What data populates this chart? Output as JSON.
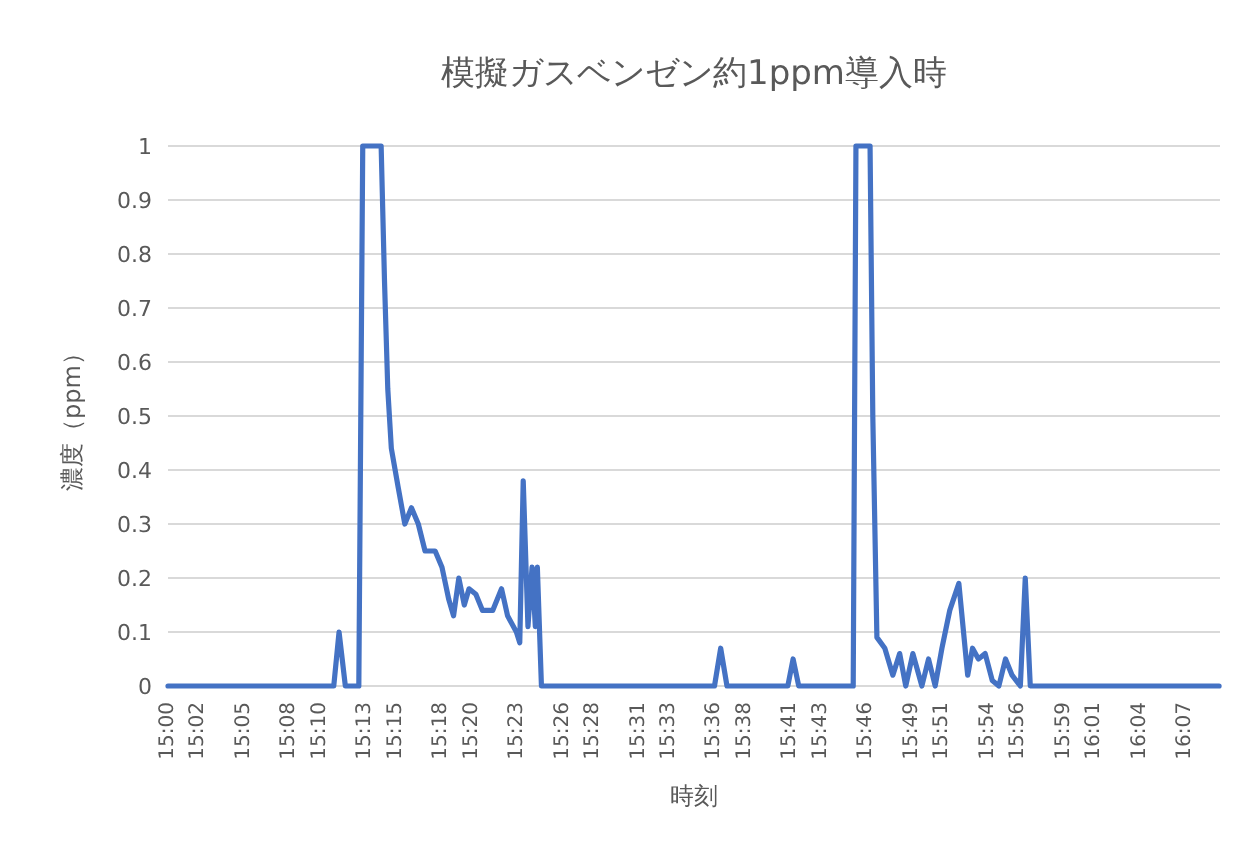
{
  "chart_data": {
    "type": "line",
    "title": "模擬ガスベンゼン約1ppm導入時",
    "xlabel": "時刻",
    "ylabel": "濃度（ppm）",
    "series": [
      {
        "color": "#4472c4",
        "x": [
          15.0,
          15.182,
          15.1878,
          15.1947,
          15.2095,
          15.2138,
          15.234,
          15.2377,
          15.2413,
          15.2452,
          15.2525,
          15.26,
          15.2673,
          15.2748,
          15.2822,
          15.2933,
          15.3008,
          15.3083,
          15.3135,
          15.3193,
          15.3253,
          15.3305,
          15.338,
          15.3453,
          15.3565,
          15.3662,
          15.3728,
          15.3825,
          15.3862,
          15.39,
          15.3952,
          15.3997,
          15.4033,
          15.4055,
          15.41,
          15.6,
          15.6068,
          15.6137,
          15.6805,
          15.6863,
          15.6925,
          15.7523,
          15.7553,
          15.7708,
          15.7738,
          15.7783,
          15.787,
          15.7958,
          15.8033,
          15.81,
          15.8178,
          15.8277,
          15.835,
          15.8423,
          15.8497,
          15.8583,
          15.8683,
          15.878,
          15.8833,
          15.8898,
          15.8972,
          15.905,
          15.9122,
          15.9195,
          15.9267,
          15.9358,
          15.9412,
          15.9467,
          16.154
        ],
        "values": [
          0,
          0,
          0.1,
          0,
          0,
          1,
          1,
          0.75,
          0.55,
          0.44,
          0.37,
          0.3,
          0.33,
          0.3,
          0.25,
          0.25,
          0.22,
          0.16,
          0.13,
          0.2,
          0.15,
          0.18,
          0.17,
          0.14,
          0.14,
          0.18,
          0.13,
          0.1,
          0.08,
          0.38,
          0.11,
          0.22,
          0.11,
          0.22,
          0,
          0,
          0.07,
          0,
          0,
          0.05,
          0,
          0,
          1,
          1,
          0.5,
          0.09,
          0.07,
          0.02,
          0.06,
          0,
          0.06,
          0,
          0.05,
          0,
          0.07,
          0.14,
          0.19,
          0.02,
          0.07,
          0.05,
          0.06,
          0.01,
          0,
          0.05,
          0.02,
          0,
          0.2,
          0,
          0
        ]
      }
    ],
    "xlim": [
      15.0,
      16.155
    ],
    "xticks": [
      {
        "value": 15.0,
        "label": "15:00"
      },
      {
        "value": 15.0333,
        "label": "15:02"
      },
      {
        "value": 15.0833,
        "label": "15:05"
      },
      {
        "value": 15.1333,
        "label": "15:08"
      },
      {
        "value": 15.1667,
        "label": "15:10"
      },
      {
        "value": 15.2167,
        "label": "15:13"
      },
      {
        "value": 15.25,
        "label": "15:15"
      },
      {
        "value": 15.3,
        "label": "15:18"
      },
      {
        "value": 15.3333,
        "label": "15:20"
      },
      {
        "value": 15.3833,
        "label": "15:23"
      },
      {
        "value": 15.4333,
        "label": "15:26"
      },
      {
        "value": 15.4667,
        "label": "15:28"
      },
      {
        "value": 15.5167,
        "label": "15:31"
      },
      {
        "value": 15.55,
        "label": "15:33"
      },
      {
        "value": 15.6,
        "label": "15:36"
      },
      {
        "value": 15.6333,
        "label": "15:38"
      },
      {
        "value": 15.6833,
        "label": "15:41"
      },
      {
        "value": 15.7167,
        "label": "15:43"
      },
      {
        "value": 15.7667,
        "label": "15:46"
      },
      {
        "value": 15.8167,
        "label": "15:49"
      },
      {
        "value": 15.85,
        "label": "15:51"
      },
      {
        "value": 15.9,
        "label": "15:54"
      },
      {
        "value": 15.9333,
        "label": "15:56"
      },
      {
        "value": 15.9833,
        "label": "15:59"
      },
      {
        "value": 16.0167,
        "label": "16:01"
      },
      {
        "value": 16.0667,
        "label": "16:04"
      },
      {
        "value": 16.1167,
        "label": "16:07"
      }
    ],
    "ylim": [
      0,
      1
    ],
    "yticks": [
      0,
      0.1,
      0.2,
      0.3,
      0.4,
      0.5,
      0.6,
      0.7,
      0.8,
      0.9,
      1
    ],
    "grid": "y",
    "marker": "none",
    "line_style": "solid"
  }
}
